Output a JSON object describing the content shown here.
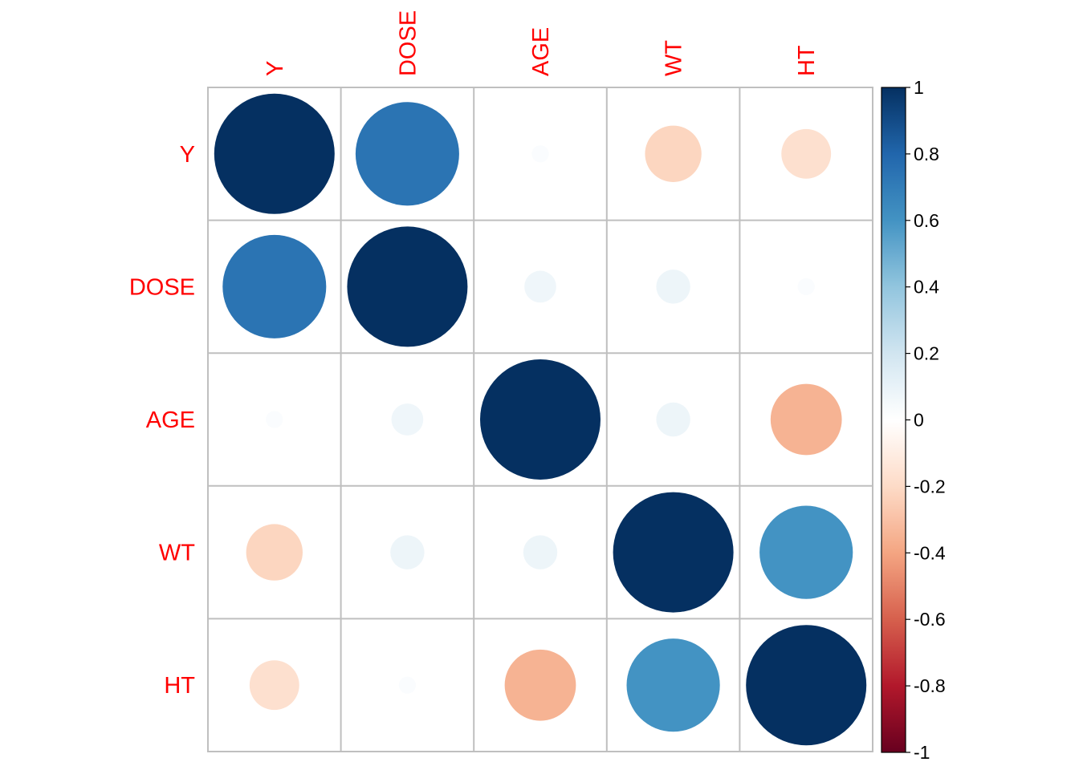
{
  "chart_data": {
    "type": "heatmap",
    "style": "correlation-circles",
    "variables": [
      "Y",
      "DOSE",
      "AGE",
      "WT",
      "HT"
    ],
    "matrix": [
      [
        1.0,
        0.74,
        0.02,
        -0.22,
        -0.17
      ],
      [
        0.74,
        1.0,
        0.07,
        0.08,
        0.02
      ],
      [
        0.02,
        0.07,
        1.0,
        0.08,
        -0.35
      ],
      [
        -0.22,
        0.08,
        0.08,
        1.0,
        0.6
      ],
      [
        -0.17,
        0.02,
        -0.35,
        0.6,
        1.0
      ]
    ],
    "color_range": [
      -1,
      1
    ],
    "colorbar_ticks": [
      "-1",
      "-0.8",
      "-0.6",
      "-0.4",
      "-0.2",
      "0",
      "0.2",
      "0.4",
      "0.6",
      "0.8",
      "1"
    ],
    "colors": {
      "label": "#ff0000",
      "grid": "#bfbfbf",
      "scale": [
        "#67001f",
        "#b2182b",
        "#d6604d",
        "#f4a582",
        "#fddbc7",
        "#ffffff",
        "#d1e5f0",
        "#92c5de",
        "#4393c3",
        "#2166ac",
        "#053061"
      ]
    },
    "legend_position": "right",
    "grid": true
  }
}
